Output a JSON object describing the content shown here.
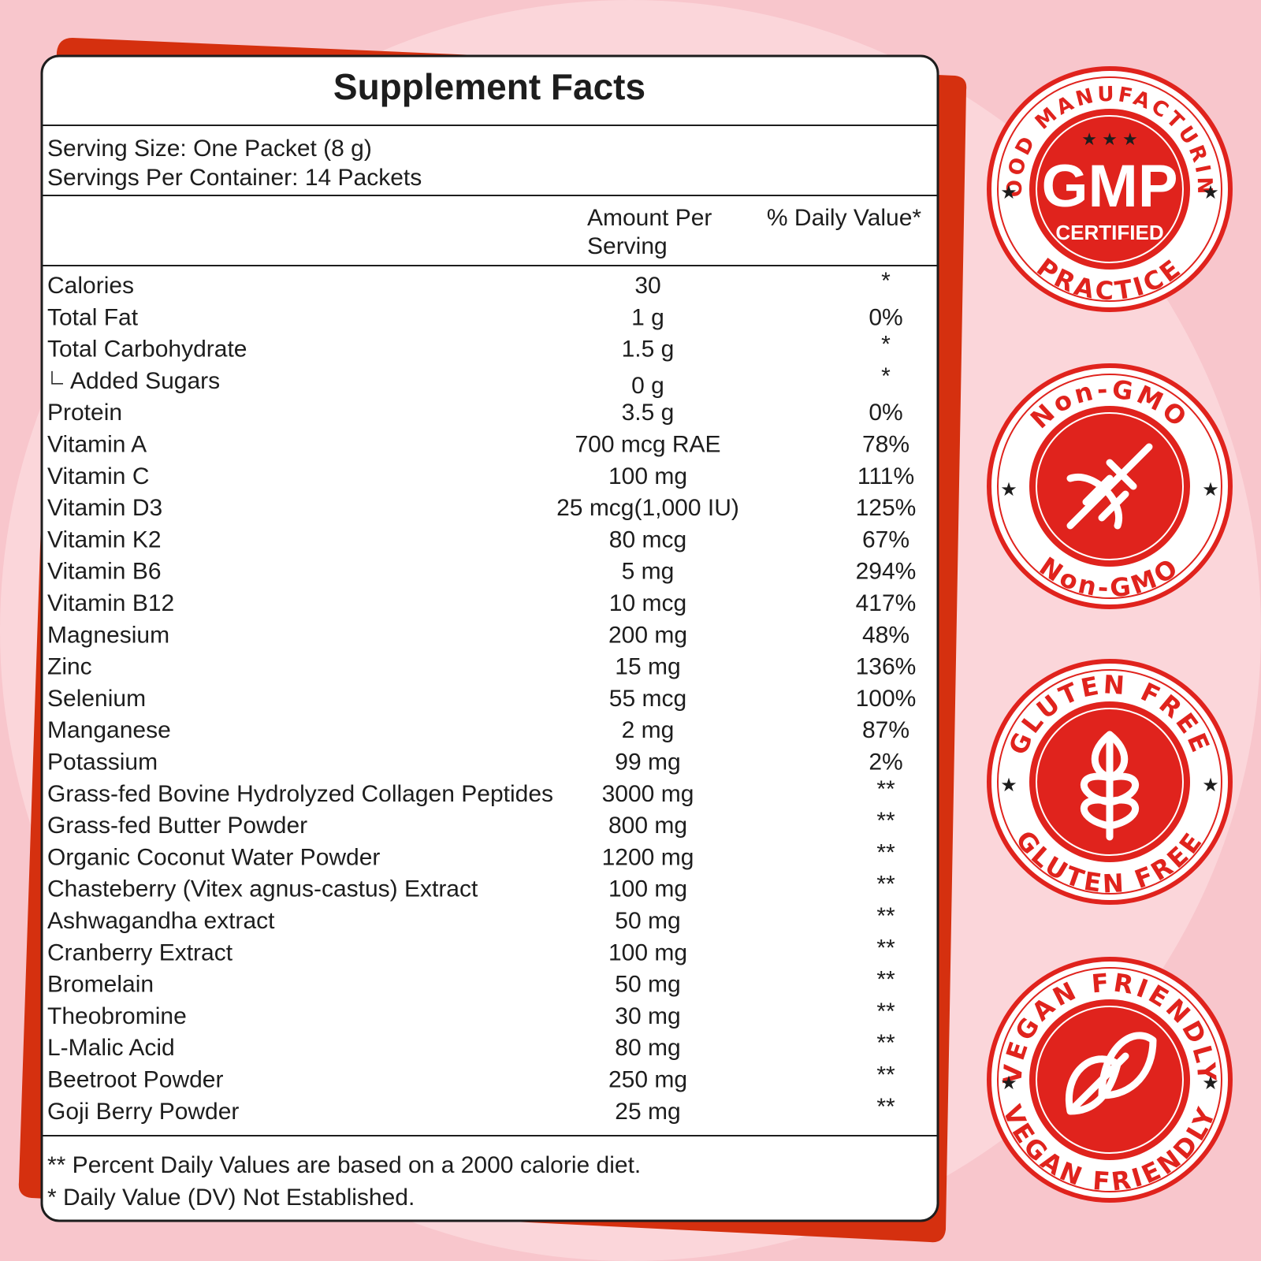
{
  "title": "Supplement Facts",
  "serving": [
    "Serving Size: One Packet (8 g)",
    "Servings Per Container: 14 Packets"
  ],
  "header": {
    "amount": [
      "Amount Per",
      "Serving"
    ],
    "daily_value": "% Daily Value*"
  },
  "rows": [
    [
      "Calories",
      "30",
      "*"
    ],
    [
      "Total Fat",
      "1 g",
      "0%"
    ],
    [
      "Total Carbohydrate",
      "1.5 g",
      "*"
    ],
    [
      "Added Sugars",
      "0 g",
      "*"
    ],
    [
      "Protein",
      "3.5 g",
      "0%"
    ],
    [
      "Vitamin A",
      "700 mcg RAE",
      "78%"
    ],
    [
      "Vitamin C",
      "100 mg",
      "111%"
    ],
    [
      "Vitamin D3",
      "25 mcg(1,000 IU)",
      "125%"
    ],
    [
      "Vitamin K2",
      "80 mcg",
      "67%"
    ],
    [
      "Vitamin B6",
      "5 mg",
      "294%"
    ],
    [
      "Vitamin B12",
      "10 mcg",
      "417%"
    ],
    [
      "Magnesium",
      "200 mg",
      "48%"
    ],
    [
      "Zinc",
      "15 mg",
      "136%"
    ],
    [
      "Selenium",
      "55 mcg",
      "100%"
    ],
    [
      "Manganese",
      "2 mg",
      "87%"
    ],
    [
      "Potassium",
      "99 mg",
      "2%"
    ],
    [
      "Grass-fed Bovine Hydrolyzed Collagen Peptides",
      "3000 mg",
      "**"
    ],
    [
      "Grass-fed Butter Powder",
      "800 mg",
      "**"
    ],
    [
      "Organic Coconut Water Powder",
      "1200 mg",
      "**"
    ],
    [
      "Chasteberry (Vitex agnus-castus) Extract",
      "100 mg",
      "**"
    ],
    [
      "Ashwagandha extract",
      "50 mg",
      "**"
    ],
    [
      "Cranberry Extract",
      "100 mg",
      "**"
    ],
    [
      "Bromelain",
      "50 mg",
      "**"
    ],
    [
      "Theobromine",
      "30 mg",
      "**"
    ],
    [
      "L-Malic Acid",
      "80 mg",
      "**"
    ],
    [
      "Beetroot Powder",
      "250 mg",
      "**"
    ],
    [
      "Goji Berry Powder",
      "25 mg",
      "**"
    ]
  ],
  "footnotes": [
    "** Percent Daily Values are based on a 2000 calorie diet.",
    "* Daily Value (DV) Not Established."
  ],
  "badges": [
    {
      "top": "GOOD MANUFACTURING",
      "bottom": "PRACTICE",
      "center": [
        "GMP",
        "CERTIFIED"
      ]
    },
    {
      "top": "Non-GMO",
      "bottom": "Non-GMO"
    },
    {
      "top": "GLUTEN FREE",
      "bottom": "GLUTEN FREE"
    },
    {
      "top": "VEGAN FRIENDLY",
      "bottom": "VEGAN FRIENDLY"
    }
  ]
}
